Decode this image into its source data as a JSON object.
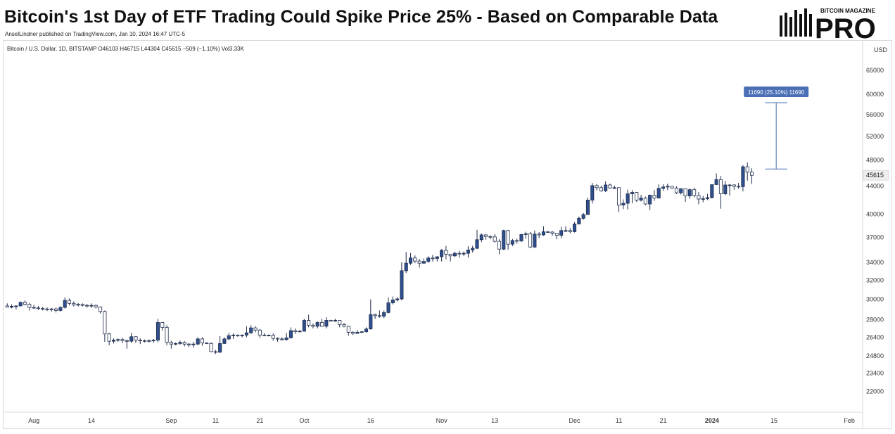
{
  "header": {
    "title": "Bitcoin's 1st Day of ETF Trading Could Spike Price 25% - Based on Comparable Data",
    "byline": "AnselLindner published on TradingView.com, Jan 10, 2024 16:47 UTC-5"
  },
  "brand": {
    "top_label": "BITCOIN MAGAZINE",
    "main_label": "PRO",
    "icon": "candlestick-bars-logo-icon"
  },
  "symbol": {
    "text": "Bitcoin / U.S. Dollar, 1D, BITSTAMP  O46103  H46715  L44304  C45615  −509 (−1.10%)  Vol3.33K"
  },
  "colors": {
    "up_candle": "#2f4f8f",
    "down_candle": "#ffffff",
    "candle_border": "#1f2d4d",
    "accent": "#4a6fb5",
    "axis_text": "#333333"
  },
  "chart_data": {
    "type": "candlestick",
    "y_scale": "log",
    "y_unit": "USD",
    "ylim": [
      20500,
      72000
    ],
    "y_ticks": [
      22000,
      23400,
      24800,
      26400,
      28000,
      30000,
      32000,
      34000,
      37000,
      40000,
      44000,
      48000,
      52000,
      56000,
      60000,
      65000
    ],
    "x_ticks": [
      {
        "label": "Aug",
        "date": "2023-08-01"
      },
      {
        "label": "14",
        "date": "2023-08-14"
      },
      {
        "label": "Sep",
        "date": "2023-09-01"
      },
      {
        "label": "11",
        "date": "2023-09-11"
      },
      {
        "label": "21",
        "date": "2023-09-21"
      },
      {
        "label": "Oct",
        "date": "2023-10-01"
      },
      {
        "label": "16",
        "date": "2023-10-16"
      },
      {
        "label": "Nov",
        "date": "2023-11-01"
      },
      {
        "label": "13",
        "date": "2023-11-13"
      },
      {
        "label": "Dec",
        "date": "2023-12-01"
      },
      {
        "label": "11",
        "date": "2023-12-11"
      },
      {
        "label": "21",
        "date": "2023-12-21"
      },
      {
        "label": "2024",
        "date": "2024-01-01"
      },
      {
        "label": "15",
        "date": "2024-01-15"
      },
      {
        "label": "Feb",
        "date": "2024-02-01"
      }
    ],
    "x_range": [
      "2023-07-25",
      "2024-02-04"
    ],
    "last_price": 45615,
    "last_price_label": "45615",
    "projection": {
      "label": "11690 (25.10%) 11690",
      "from_date": "2024-01-13",
      "to_date": "2024-01-18",
      "from_price": 46600,
      "to_price": 58290
    },
    "candles": [
      [
        "2023-07-26",
        29350,
        29600,
        29200,
        29220
      ],
      [
        "2023-07-27",
        29220,
        29500,
        29100,
        29310
      ],
      [
        "2023-07-28",
        29310,
        29400,
        29000,
        29350
      ],
      [
        "2023-07-29",
        29350,
        29800,
        29300,
        29700
      ],
      [
        "2023-07-30",
        29700,
        29900,
        29400,
        29500
      ],
      [
        "2023-07-31",
        29500,
        29650,
        28900,
        29200
      ],
      [
        "2023-08-01",
        29200,
        29450,
        29050,
        29150
      ],
      [
        "2023-08-02",
        29150,
        29350,
        28950,
        29100
      ],
      [
        "2023-08-03",
        29100,
        29250,
        28900,
        29050
      ],
      [
        "2023-08-04",
        29050,
        29200,
        28850,
        29000
      ],
      [
        "2023-08-05",
        29000,
        29150,
        28800,
        29050
      ],
      [
        "2023-08-06",
        29050,
        29200,
        28700,
        28900
      ],
      [
        "2023-08-07",
        28900,
        29300,
        28800,
        29200
      ],
      [
        "2023-08-08",
        29200,
        30200,
        29100,
        29900
      ],
      [
        "2023-08-09",
        29900,
        30100,
        29400,
        29600
      ],
      [
        "2023-08-10",
        29600,
        29800,
        29300,
        29450
      ],
      [
        "2023-08-11",
        29450,
        29650,
        29300,
        29500
      ],
      [
        "2023-08-12",
        29500,
        29600,
        29300,
        29400
      ],
      [
        "2023-08-13",
        29400,
        29550,
        29200,
        29350
      ],
      [
        "2023-08-14",
        29350,
        29600,
        29150,
        29400
      ],
      [
        "2023-08-15",
        29400,
        29500,
        29100,
        29250
      ],
      [
        "2023-08-16",
        29250,
        29300,
        28600,
        28800
      ],
      [
        "2023-08-17",
        28800,
        28900,
        26000,
        26700
      ],
      [
        "2023-08-18",
        26700,
        26800,
        25700,
        26050
      ],
      [
        "2023-08-19",
        26050,
        26300,
        25850,
        26150
      ],
      [
        "2023-08-20",
        26150,
        26300,
        26000,
        26200
      ],
      [
        "2023-08-21",
        26200,
        26350,
        25900,
        26100
      ],
      [
        "2023-08-22",
        26100,
        26200,
        25400,
        26050
      ],
      [
        "2023-08-23",
        26050,
        26800,
        25900,
        26450
      ],
      [
        "2023-08-24",
        26450,
        26500,
        25900,
        26150
      ],
      [
        "2023-08-25",
        26150,
        26300,
        25800,
        26100
      ],
      [
        "2023-08-26",
        26100,
        26200,
        25950,
        26050
      ],
      [
        "2023-08-27",
        26050,
        26200,
        25950,
        26100
      ],
      [
        "2023-08-28",
        26100,
        26250,
        25900,
        26150
      ],
      [
        "2023-08-29",
        26150,
        28100,
        25950,
        27750
      ],
      [
        "2023-08-30",
        27750,
        27800,
        27000,
        27300
      ],
      [
        "2023-08-31",
        27300,
        27500,
        25700,
        25950
      ],
      [
        "2023-09-01",
        25950,
        26100,
        25400,
        25800
      ],
      [
        "2023-09-02",
        25800,
        25950,
        25700,
        25850
      ],
      [
        "2023-09-03",
        25850,
        26100,
        25750,
        25950
      ],
      [
        "2023-09-04",
        25950,
        26050,
        25600,
        25800
      ],
      [
        "2023-09-05",
        25800,
        25900,
        25550,
        25750
      ],
      [
        "2023-09-06",
        25750,
        26000,
        25500,
        25800
      ],
      [
        "2023-09-07",
        25800,
        26400,
        25700,
        26250
      ],
      [
        "2023-09-08",
        26250,
        26400,
        25650,
        25900
      ],
      [
        "2023-09-09",
        25900,
        25950,
        25800,
        25850
      ],
      [
        "2023-09-10",
        25850,
        25950,
        25200,
        25150
      ],
      [
        "2023-09-11",
        25150,
        25300,
        24950,
        25100
      ],
      [
        "2023-09-12",
        25100,
        26500,
        25050,
        25850
      ],
      [
        "2023-09-13",
        25850,
        26400,
        25800,
        26250
      ],
      [
        "2023-09-14",
        26250,
        26800,
        26150,
        26550
      ],
      [
        "2023-09-15",
        26550,
        26750,
        26250,
        26600
      ],
      [
        "2023-09-16",
        26600,
        26650,
        26450,
        26550
      ],
      [
        "2023-09-17",
        26550,
        26650,
        26400,
        26600
      ],
      [
        "2023-09-18",
        26600,
        27400,
        26400,
        26800
      ],
      [
        "2023-09-19",
        26800,
        27500,
        26700,
        27250
      ],
      [
        "2023-09-20",
        27250,
        27400,
        26850,
        27050
      ],
      [
        "2023-09-21",
        27050,
        27150,
        26350,
        26600
      ],
      [
        "2023-09-22",
        26600,
        26750,
        26500,
        26550
      ],
      [
        "2023-09-23",
        26550,
        26650,
        26500,
        26580
      ],
      [
        "2023-09-24",
        26580,
        26750,
        26100,
        26300
      ],
      [
        "2023-09-25",
        26300,
        26400,
        26000,
        26250
      ],
      [
        "2023-09-26",
        26250,
        26400,
        26100,
        26200
      ],
      [
        "2023-09-27",
        26200,
        26800,
        26100,
        26350
      ],
      [
        "2023-09-28",
        26350,
        27300,
        26300,
        27000
      ],
      [
        "2023-09-29",
        27000,
        27200,
        26700,
        26900
      ],
      [
        "2023-09-30",
        26900,
        27050,
        26850,
        26950
      ],
      [
        "2023-10-01",
        26950,
        28100,
        26900,
        27950
      ],
      [
        "2023-10-02",
        27950,
        28500,
        27300,
        27500
      ],
      [
        "2023-10-03",
        27500,
        27650,
        27200,
        27400
      ],
      [
        "2023-10-04",
        27400,
        27850,
        27200,
        27750
      ],
      [
        "2023-10-05",
        27750,
        28100,
        27350,
        27400
      ],
      [
        "2023-10-06",
        27400,
        28250,
        27200,
        27950
      ],
      [
        "2023-10-07",
        27950,
        28000,
        27850,
        27900
      ],
      [
        "2023-10-08",
        27900,
        28100,
        27800,
        27950
      ],
      [
        "2023-10-09",
        27950,
        27950,
        27300,
        27550
      ],
      [
        "2023-10-10",
        27550,
        27700,
        27300,
        27400
      ],
      [
        "2023-10-11",
        27400,
        27450,
        26550,
        26850
      ],
      [
        "2023-10-12",
        26850,
        26950,
        26600,
        26750
      ],
      [
        "2023-10-13",
        26750,
        27050,
        26800,
        26850
      ],
      [
        "2023-10-14",
        26850,
        26950,
        26800,
        26900
      ],
      [
        "2023-10-15",
        26900,
        27300,
        26800,
        27150
      ],
      [
        "2023-10-16",
        27150,
        30000,
        27100,
        28500
      ],
      [
        "2023-10-17",
        28500,
        28600,
        28100,
        28400
      ],
      [
        "2023-10-18",
        28400,
        28900,
        28200,
        28350
      ],
      [
        "2023-10-19",
        28350,
        28900,
        28150,
        28700
      ],
      [
        "2023-10-20",
        28700,
        30200,
        28600,
        29650
      ],
      [
        "2023-10-21",
        29650,
        30300,
        29500,
        29950
      ],
      [
        "2023-10-22",
        29950,
        30250,
        29800,
        30050
      ],
      [
        "2023-10-23",
        30050,
        34000,
        29900,
        33050
      ],
      [
        "2023-10-24",
        33050,
        35200,
        32800,
        33900
      ],
      [
        "2023-10-25",
        33900,
        35100,
        33700,
        34500
      ],
      [
        "2023-10-26",
        34500,
        34800,
        33900,
        34150
      ],
      [
        "2023-10-27",
        34150,
        34400,
        33400,
        33900
      ],
      [
        "2023-10-28",
        33900,
        34450,
        33850,
        34100
      ],
      [
        "2023-10-29",
        34100,
        34700,
        33950,
        34500
      ],
      [
        "2023-10-30",
        34500,
        34850,
        34100,
        34450
      ],
      [
        "2023-10-31",
        34450,
        34700,
        34100,
        34650
      ],
      [
        "2023-11-01",
        34650,
        35550,
        34100,
        35400
      ],
      [
        "2023-11-02",
        35400,
        35950,
        34350,
        34950
      ],
      [
        "2023-11-03",
        34950,
        34950,
        34100,
        34750
      ],
      [
        "2023-11-04",
        34750,
        35250,
        34600,
        35050
      ],
      [
        "2023-11-05",
        35050,
        35350,
        34550,
        35000
      ],
      [
        "2023-11-06",
        35000,
        35250,
        34750,
        35050
      ],
      [
        "2023-11-07",
        35050,
        35900,
        34550,
        35450
      ],
      [
        "2023-11-08",
        35450,
        35950,
        35150,
        35650
      ],
      [
        "2023-11-09",
        35650,
        37950,
        35550,
        36700
      ],
      [
        "2023-11-10",
        36700,
        37500,
        36400,
        37300
      ],
      [
        "2023-11-11",
        37300,
        37400,
        36700,
        37100
      ],
      [
        "2023-11-12",
        37100,
        37250,
        36750,
        37050
      ],
      [
        "2023-11-13",
        37050,
        37400,
        36350,
        36500
      ],
      [
        "2023-11-14",
        36500,
        36750,
        34950,
        35550
      ],
      [
        "2023-11-15",
        35550,
        37950,
        35450,
        37850
      ],
      [
        "2023-11-16",
        37850,
        37900,
        35500,
        36150
      ],
      [
        "2023-11-17",
        36150,
        36800,
        35900,
        36600
      ],
      [
        "2023-11-18",
        36600,
        36850,
        36200,
        36550
      ],
      [
        "2023-11-19",
        36550,
        37450,
        36400,
        37350
      ],
      [
        "2023-11-20",
        37350,
        37700,
        36800,
        37450
      ],
      [
        "2023-11-21",
        37450,
        37650,
        35700,
        35800
      ],
      [
        "2023-11-22",
        35800,
        37850,
        35700,
        37400
      ],
      [
        "2023-11-23",
        37400,
        37650,
        36900,
        37300
      ],
      [
        "2023-11-24",
        37300,
        38400,
        37200,
        37700
      ],
      [
        "2023-11-25",
        37700,
        37800,
        37550,
        37650
      ],
      [
        "2023-11-26",
        37650,
        37800,
        37200,
        37500
      ],
      [
        "2023-11-27",
        37500,
        37550,
        36750,
        37250
      ],
      [
        "2023-11-28",
        37250,
        38350,
        36900,
        37850
      ],
      [
        "2023-11-29",
        37850,
        38400,
        37650,
        37850
      ],
      [
        "2023-11-30",
        37850,
        38150,
        37500,
        37700
      ],
      [
        "2023-12-01",
        37700,
        38950,
        37600,
        38700
      ],
      [
        "2023-12-02",
        38700,
        39700,
        38650,
        39450
      ],
      [
        "2023-12-03",
        39450,
        40150,
        39250,
        39950
      ],
      [
        "2023-12-04",
        39950,
        42300,
        39950,
        41950
      ],
      [
        "2023-12-05",
        41950,
        44450,
        41450,
        44050
      ],
      [
        "2023-12-06",
        44050,
        44300,
        43350,
        43750
      ],
      [
        "2023-12-07",
        43750,
        44050,
        43150,
        43300
      ],
      [
        "2023-12-08",
        43300,
        44700,
        43100,
        44150
      ],
      [
        "2023-12-09",
        44150,
        44350,
        43600,
        43700
      ],
      [
        "2023-12-10",
        43700,
        44050,
        43550,
        43750
      ],
      [
        "2023-12-11",
        43750,
        43750,
        40300,
        41250
      ],
      [
        "2023-12-12",
        41250,
        42050,
        40700,
        41500
      ],
      [
        "2023-12-13",
        41500,
        43450,
        40650,
        42850
      ],
      [
        "2023-12-14",
        42850,
        43400,
        41500,
        43050
      ],
      [
        "2023-12-15",
        43050,
        43100,
        41700,
        41950
      ],
      [
        "2023-12-16",
        41950,
        42700,
        41750,
        42250
      ],
      [
        "2023-12-17",
        42250,
        42450,
        41250,
        41400
      ],
      [
        "2023-12-18",
        41400,
        42750,
        40550,
        42650
      ],
      [
        "2023-12-19",
        42650,
        43400,
        41850,
        42250
      ],
      [
        "2023-12-20",
        42250,
        44250,
        42200,
        43650
      ],
      [
        "2023-12-21",
        43650,
        44250,
        43300,
        43850
      ],
      [
        "2023-12-22",
        43850,
        44350,
        43400,
        43950
      ],
      [
        "2023-12-23",
        43950,
        43950,
        43600,
        43700
      ],
      [
        "2023-12-24",
        43700,
        43950,
        42800,
        43000
      ],
      [
        "2023-12-25",
        43000,
        43550,
        42750,
        43600
      ],
      [
        "2023-12-26",
        43600,
        43600,
        41700,
        42550
      ],
      [
        "2023-12-27",
        42550,
        43650,
        42150,
        43450
      ],
      [
        "2023-12-28",
        43450,
        43750,
        42350,
        42600
      ],
      [
        "2023-12-29",
        42600,
        43100,
        41350,
        42100
      ],
      [
        "2023-12-30",
        42100,
        42550,
        41650,
        42150
      ],
      [
        "2023-12-31",
        42150,
        42850,
        41950,
        42300
      ],
      [
        "2024-01-01",
        42300,
        44200,
        42200,
        44200
      ],
      [
        "2024-01-02",
        44200,
        45900,
        44200,
        44950
      ],
      [
        "2024-01-03",
        44950,
        45500,
        40750,
        42850
      ],
      [
        "2024-01-04",
        42850,
        44750,
        42650,
        44150
      ],
      [
        "2024-01-05",
        44150,
        44300,
        42600,
        44150
      ],
      [
        "2024-01-06",
        44150,
        44250,
        43450,
        43950
      ],
      [
        "2024-01-07",
        43950,
        44450,
        43600,
        43900
      ],
      [
        "2024-01-08",
        43900,
        47200,
        43200,
        46950
      ],
      [
        "2024-01-09",
        46950,
        47650,
        44800,
        46100
      ],
      [
        "2024-01-10",
        46103,
        46715,
        44304,
        45615
      ]
    ]
  }
}
